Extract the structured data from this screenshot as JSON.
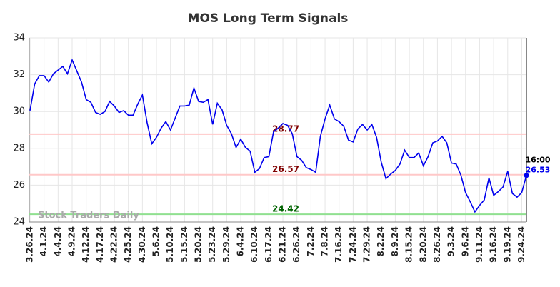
{
  "chart_data": {
    "type": "line",
    "title": "MOS Long Term Signals",
    "categories": [
      "3.26.24",
      null,
      null,
      "4.1.24",
      null,
      null,
      "4.4.24",
      null,
      null,
      "4.9.24",
      null,
      null,
      "4.12.24",
      null,
      null,
      "4.17.24",
      null,
      null,
      "4.22.24",
      null,
      null,
      "4.25.24",
      null,
      null,
      "4.30.24",
      null,
      null,
      "5.6.24",
      null,
      null,
      "5.10.24",
      null,
      null,
      "5.15.24",
      null,
      null,
      "5.20.24",
      null,
      null,
      "5.23.24",
      null,
      null,
      "5.29.24",
      null,
      null,
      "6.4.24",
      null,
      null,
      "6.10.24",
      null,
      null,
      "6.17.24",
      null,
      null,
      "6.21.24",
      null,
      null,
      "6.26.24",
      null,
      null,
      "7.2.24",
      null,
      null,
      "7.8.24",
      null,
      null,
      "7.16.24",
      null,
      null,
      "7.24.24",
      null,
      null,
      "7.29.24",
      null,
      null,
      "8.2.24",
      null,
      null,
      "8.9.24",
      null,
      null,
      "8.15.24",
      null,
      null,
      "8.20.24",
      null,
      null,
      "8.26.24",
      null,
      null,
      "9.3.24",
      null,
      null,
      "9.6.24",
      null,
      null,
      "9.11.24",
      null,
      null,
      "9.16.24",
      null,
      null,
      "9.19.24",
      null,
      null,
      "9.24.24",
      null
    ],
    "values": [
      30.05,
      31.5,
      31.95,
      31.95,
      31.6,
      32.05,
      32.25,
      32.45,
      32.05,
      32.8,
      32.2,
      31.6,
      30.65,
      30.5,
      29.95,
      29.85,
      30.0,
      30.55,
      30.3,
      29.95,
      30.05,
      29.8,
      29.8,
      30.4,
      30.9,
      29.4,
      28.25,
      28.6,
      29.1,
      29.45,
      29.0,
      29.65,
      30.3,
      30.3,
      30.35,
      31.28,
      30.55,
      30.5,
      30.65,
      29.3,
      30.45,
      30.1,
      29.25,
      28.8,
      28.05,
      28.5,
      28.05,
      27.85,
      26.7,
      26.9,
      27.5,
      27.55,
      28.9,
      29.1,
      29.35,
      29.25,
      28.8,
      27.55,
      27.35,
      26.95,
      26.85,
      26.7,
      28.65,
      29.6,
      30.35,
      29.6,
      29.45,
      29.2,
      28.45,
      28.35,
      29.05,
      29.3,
      29.0,
      29.3,
      28.6,
      27.25,
      26.35,
      26.6,
      26.8,
      27.15,
      27.9,
      27.5,
      27.5,
      27.75,
      27.05,
      27.55,
      28.3,
      28.4,
      28.65,
      28.3,
      27.2,
      27.15,
      26.55,
      25.6,
      25.1,
      24.55,
      24.9,
      25.2,
      26.4,
      25.45,
      25.65,
      25.9,
      26.75,
      25.55,
      25.35,
      25.6,
      26.53
    ],
    "color": "#0000ee",
    "ylim": [
      24,
      34
    ],
    "yticks": [
      24,
      26,
      28,
      30,
      32,
      34
    ],
    "grid": true,
    "hlines": [
      {
        "value": 28.77,
        "color": "#ffc8c8",
        "label_color": "#800000"
      },
      {
        "value": 26.57,
        "color": "#ffc8c8",
        "label_color": "#800000"
      },
      {
        "value": 24.42,
        "color": "#90e090",
        "label_color": "#006400"
      }
    ],
    "last_time": "16:00",
    "watermark": "Stock Traders Daily"
  }
}
